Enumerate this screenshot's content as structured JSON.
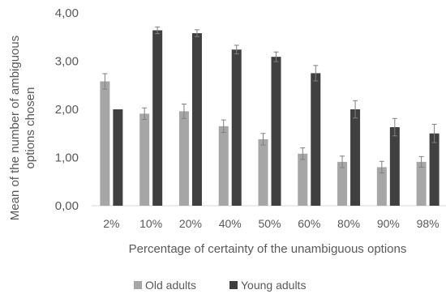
{
  "chart_data": {
    "type": "bar",
    "xlabel": "Percentage of certainty of the unambiguous options",
    "ylabel_line1": "Mean of the number of ambiguous",
    "ylabel_line2": "options chosen",
    "ylim": [
      0,
      4
    ],
    "yticks": [
      "0,00",
      "1,00",
      "2,00",
      "3,00",
      "4,00"
    ],
    "grid": false,
    "legend_position": "bottom",
    "categories": [
      "2%",
      "10%",
      "20%",
      "40%",
      "50%",
      "60%",
      "80%",
      "90%",
      "98%"
    ],
    "series": [
      {
        "name": "Old adults",
        "color": "#a6a6a6",
        "values": [
          2.58,
          1.91,
          1.96,
          1.65,
          1.38,
          1.08,
          0.91,
          0.8,
          0.91
        ],
        "error": [
          0.16,
          0.12,
          0.15,
          0.13,
          0.12,
          0.12,
          0.12,
          0.12,
          0.11
        ]
      },
      {
        "name": "Young adults",
        "color": "#404040",
        "values": [
          2.0,
          3.64,
          3.58,
          3.24,
          3.09,
          2.75,
          2.0,
          1.63,
          1.5
        ],
        "error": [
          0.0,
          0.07,
          0.07,
          0.09,
          0.1,
          0.16,
          0.18,
          0.18,
          0.19
        ]
      }
    ]
  }
}
